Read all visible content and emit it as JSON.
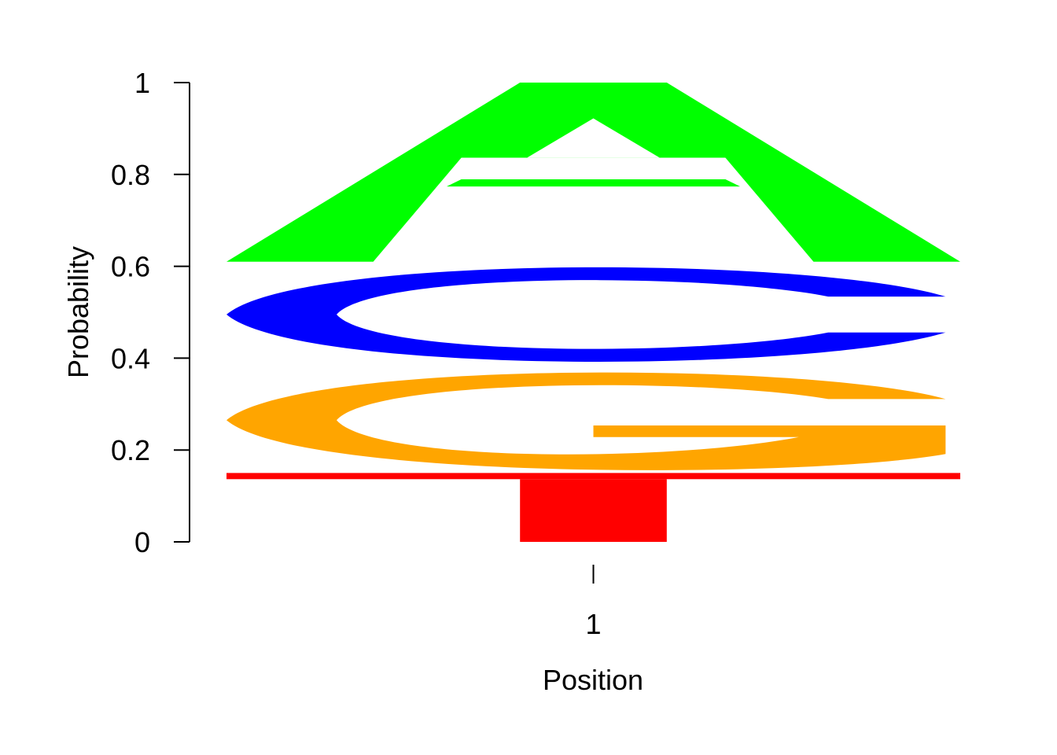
{
  "chart_data": {
    "type": "sequence-logo",
    "xlabel": "Position",
    "ylabel": "Probability",
    "ylim": [
      0,
      1
    ],
    "yticks": [
      "0",
      "0.2",
      "0.4",
      "0.6",
      "0.8",
      "1"
    ],
    "ytick_values": [
      0,
      0.2,
      0.4,
      0.6,
      0.8,
      1
    ],
    "positions": [
      {
        "label": "1",
        "letters": [
          {
            "letter": "T",
            "probability": 0.15,
            "color": "#ff0000"
          },
          {
            "letter": "G",
            "probability": 0.23,
            "color": "#ffa500"
          },
          {
            "letter": "C",
            "probability": 0.23,
            "color": "#0000ff"
          },
          {
            "letter": "A",
            "probability": 0.39,
            "color": "#00ff00"
          }
        ]
      }
    ]
  }
}
